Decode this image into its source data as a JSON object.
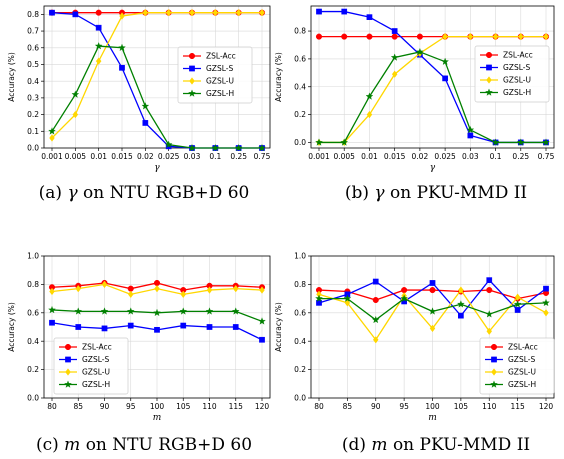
{
  "chart_data": [
    {
      "type": "line",
      "caption_prefix": "(a) ",
      "caption_var": "γ",
      "caption_suffix": " on NTU RGB+D 60",
      "xlabel": "γ",
      "ylabel": "Accuracy (%)",
      "categories": [
        "0.001",
        "0.005",
        "0.01",
        "0.015",
        "0.02",
        "0.025",
        "0.03",
        "0.1",
        "0.25",
        "0.75"
      ],
      "ylim": [
        0,
        0.85
      ],
      "yticks": [
        "0.0",
        "0.1",
        "0.2",
        "0.3",
        "0.4",
        "0.5",
        "0.6",
        "0.7",
        "0.8"
      ],
      "ytick_values": [
        0,
        0.1,
        0.2,
        0.3,
        0.4,
        0.5,
        0.6,
        0.7,
        0.8
      ],
      "legend_position": "center-right",
      "grid": true,
      "series": [
        {
          "name": "ZSL-Acc",
          "color": "#ff0000",
          "marker": "circle",
          "values": [
            0.81,
            0.81,
            0.81,
            0.81,
            0.81,
            0.81,
            0.81,
            0.81,
            0.81,
            0.81
          ]
        },
        {
          "name": "GZSL-S",
          "color": "#0000ff",
          "marker": "square",
          "values": [
            0.81,
            0.8,
            0.72,
            0.48,
            0.15,
            0.01,
            0.0,
            0.0,
            0.0,
            0.0
          ]
        },
        {
          "name": "GZSL-U",
          "color": "#ffd700",
          "marker": "diamond",
          "values": [
            0.06,
            0.2,
            0.52,
            0.79,
            0.81,
            0.81,
            0.81,
            0.81,
            0.81,
            0.81
          ]
        },
        {
          "name": "GZSL-H",
          "color": "#008000",
          "marker": "star",
          "values": [
            0.1,
            0.32,
            0.61,
            0.6,
            0.25,
            0.02,
            0.0,
            0.0,
            0.0,
            0.0
          ]
        }
      ]
    },
    {
      "type": "line",
      "caption_prefix": "(b) ",
      "caption_var": "γ",
      "caption_suffix": " on PKU-MMD II",
      "xlabel": "γ",
      "ylabel": "Accuracy (%)",
      "categories": [
        "0.001",
        "0.005",
        "0.01",
        "0.015",
        "0.02",
        "0.025",
        "0.03",
        "0.1",
        "0.25",
        "0.75"
      ],
      "ylim": [
        -0.04,
        0.98
      ],
      "yticks": [
        "0.0",
        "0.2",
        "0.4",
        "0.6",
        "0.8"
      ],
      "ytick_values": [
        0,
        0.2,
        0.4,
        0.6,
        0.8
      ],
      "legend_position": "center-right",
      "grid": true,
      "series": [
        {
          "name": "ZSL-Acc",
          "color": "#ff0000",
          "marker": "circle",
          "values": [
            0.76,
            0.76,
            0.76,
            0.76,
            0.76,
            0.76,
            0.76,
            0.76,
            0.76,
            0.76
          ]
        },
        {
          "name": "GZSL-S",
          "color": "#0000ff",
          "marker": "square",
          "values": [
            0.94,
            0.94,
            0.9,
            0.8,
            0.63,
            0.46,
            0.05,
            0.0,
            0.0,
            0.0
          ]
        },
        {
          "name": "GZSL-U",
          "color": "#ffd700",
          "marker": "diamond",
          "values": [
            0.0,
            0.0,
            0.2,
            0.49,
            0.64,
            0.76,
            0.76,
            0.76,
            0.76,
            0.76
          ]
        },
        {
          "name": "GZSL-H",
          "color": "#008000",
          "marker": "star",
          "values": [
            0.0,
            0.0,
            0.33,
            0.61,
            0.65,
            0.58,
            0.09,
            0.0,
            0.0,
            0.0
          ]
        }
      ]
    },
    {
      "type": "line",
      "caption_prefix": "(c) ",
      "caption_var": "m",
      "caption_suffix": " on NTU RGB+D 60",
      "xlabel": "m",
      "ylabel": "Accuracy (%)",
      "categories": [
        "80",
        "85",
        "90",
        "95",
        "100",
        "105",
        "110",
        "115",
        "120"
      ],
      "ylim": [
        0,
        1.0
      ],
      "yticks": [
        "0.0",
        "0.2",
        "0.4",
        "0.6",
        "0.8",
        "1.0"
      ],
      "ytick_values": [
        0,
        0.2,
        0.4,
        0.6,
        0.8,
        1.0
      ],
      "legend_position": "lower-left",
      "grid": true,
      "series": [
        {
          "name": "ZSL-Acc",
          "color": "#ff0000",
          "marker": "circle",
          "values": [
            0.78,
            0.79,
            0.81,
            0.77,
            0.81,
            0.76,
            0.79,
            0.79,
            0.78
          ]
        },
        {
          "name": "GZSL-S",
          "color": "#0000ff",
          "marker": "square",
          "values": [
            0.53,
            0.5,
            0.49,
            0.51,
            0.48,
            0.51,
            0.5,
            0.5,
            0.41
          ]
        },
        {
          "name": "GZSL-U",
          "color": "#ffd700",
          "marker": "diamond",
          "values": [
            0.75,
            0.77,
            0.8,
            0.73,
            0.77,
            0.73,
            0.76,
            0.77,
            0.76
          ]
        },
        {
          "name": "GZSL-H",
          "color": "#008000",
          "marker": "star",
          "values": [
            0.62,
            0.61,
            0.61,
            0.61,
            0.6,
            0.61,
            0.61,
            0.61,
            0.54
          ]
        }
      ]
    },
    {
      "type": "line",
      "caption_prefix": "(d) ",
      "caption_var": "m",
      "caption_suffix": " on PKU-MMD II",
      "xlabel": "m",
      "ylabel": "Accuracy (%)",
      "categories": [
        "80",
        "85",
        "90",
        "95",
        "100",
        "105",
        "110",
        "115",
        "120"
      ],
      "ylim": [
        0,
        1.0
      ],
      "yticks": [
        "0.0",
        "0.2",
        "0.4",
        "0.6",
        "0.8",
        "1.0"
      ],
      "ytick_values": [
        0,
        0.2,
        0.4,
        0.6,
        0.8,
        1.0
      ],
      "legend_position": "lower-right",
      "grid": true,
      "series": [
        {
          "name": "ZSL-Acc",
          "color": "#ff0000",
          "marker": "circle",
          "values": [
            0.76,
            0.75,
            0.69,
            0.76,
            0.76,
            0.75,
            0.76,
            0.7,
            0.74
          ]
        },
        {
          "name": "GZSL-S",
          "color": "#0000ff",
          "marker": "square",
          "values": [
            0.67,
            0.73,
            0.82,
            0.68,
            0.81,
            0.58,
            0.83,
            0.62,
            0.77
          ]
        },
        {
          "name": "GZSL-U",
          "color": "#ffd700",
          "marker": "diamond",
          "values": [
            0.73,
            0.67,
            0.41,
            0.72,
            0.49,
            0.76,
            0.47,
            0.71,
            0.6
          ]
        },
        {
          "name": "GZSL-H",
          "color": "#008000",
          "marker": "star",
          "values": [
            0.7,
            0.7,
            0.55,
            0.7,
            0.61,
            0.66,
            0.59,
            0.66,
            0.67
          ]
        }
      ]
    }
  ]
}
